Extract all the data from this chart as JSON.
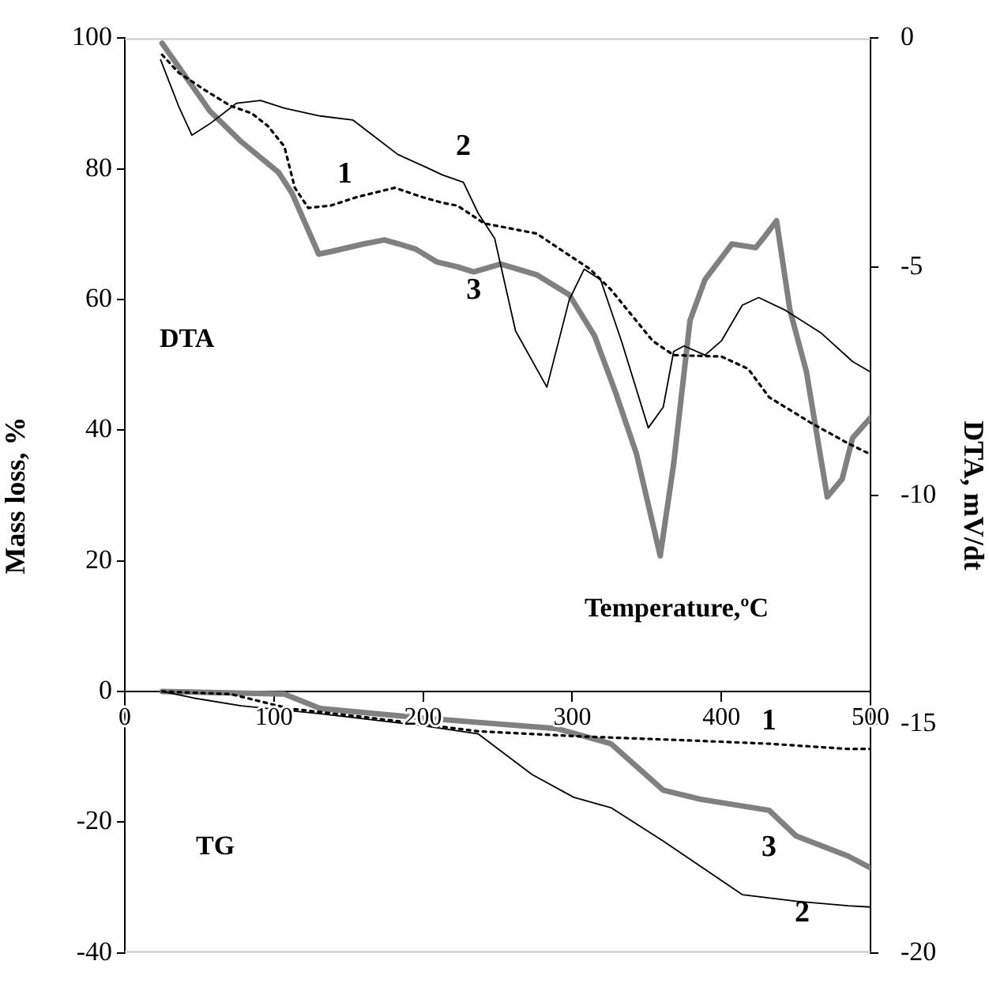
{
  "chart_data": {
    "type": "line",
    "xlabel": "Temperature,ºC",
    "ylabel": "Mass loss, %",
    "y2label": "DTA, mV/dt",
    "annotations": [
      "DTA",
      "TG"
    ],
    "xlim": [
      0,
      500
    ],
    "xticks": [
      0,
      100,
      200,
      300,
      400,
      500
    ],
    "ylim": [
      -40,
      100
    ],
    "yticks": [
      -40,
      -20,
      0,
      20,
      40,
      60,
      80,
      100
    ],
    "y2lim": [
      -20,
      0
    ],
    "y2ticks": [
      -20,
      -15,
      -10,
      -5,
      0
    ],
    "grid": false,
    "legend": false,
    "marker": "none",
    "series": [
      {
        "name": "1",
        "color": "#000000",
        "axis": "y2",
        "line_style": "dotted",
        "x": [
          25,
          36,
          54,
          71,
          85,
          96,
          107,
          114,
          123,
          138,
          156,
          181,
          199,
          213,
          223,
          241,
          276,
          312,
          326,
          354,
          368,
          400,
          418,
          432,
          460,
          485,
          500
        ],
        "values": [
          -0.36,
          -0.75,
          -1.14,
          -1.48,
          -1.64,
          -1.92,
          -2.37,
          -3.27,
          -3.71,
          -3.66,
          -3.47,
          -3.27,
          -3.47,
          -3.6,
          -3.66,
          -4.05,
          -4.27,
          -5.05,
          -5.5,
          -6.62,
          -6.93,
          -6.96,
          -7.23,
          -7.85,
          -8.41,
          -8.86,
          -9.1
        ]
      },
      {
        "name": "2",
        "color": "#000000",
        "axis": "y2",
        "line_style": "solid",
        "x": [
          24,
          36,
          45,
          57,
          75,
          91,
          107,
          131,
          153,
          167,
          183,
          202,
          213,
          227,
          237,
          248,
          262,
          283,
          298,
          308,
          319,
          333,
          351,
          361,
          368,
          375,
          389,
          400,
          414,
          425,
          443,
          467,
          488,
          500
        ],
        "values": [
          -0.47,
          -1.48,
          -2.12,
          -1.87,
          -1.42,
          -1.36,
          -1.53,
          -1.7,
          -1.79,
          -2.14,
          -2.54,
          -2.82,
          -2.99,
          -3.15,
          -3.83,
          -4.38,
          -6.4,
          -7.63,
          -5.72,
          -5.05,
          -5.28,
          -6.62,
          -8.52,
          -8.07,
          -6.85,
          -6.73,
          -6.93,
          -6.62,
          -5.84,
          -5.67,
          -5.95,
          -6.45,
          -7.07,
          -7.3
        ]
      },
      {
        "name": "3",
        "color": "#808080",
        "axis": "y2",
        "line_style": "solid",
        "x": [
          25,
          57,
          78,
          103,
          112,
          130,
          139,
          160,
          174,
          184,
          195,
          209,
          223,
          234,
          252,
          276,
          298,
          315,
          329,
          343,
          359,
          368,
          379,
          389,
          407,
          423,
          428,
          437,
          446,
          457,
          471,
          481,
          488,
          500
        ],
        "values": [
          -0.11,
          -1.59,
          -2.26,
          -2.93,
          -3.38,
          -4.72,
          -4.66,
          -4.5,
          -4.41,
          -4.5,
          -4.61,
          -4.89,
          -5.0,
          -5.11,
          -4.94,
          -5.17,
          -5.61,
          -6.51,
          -7.74,
          -9.08,
          -11.32,
          -9.31,
          -6.17,
          -5.28,
          -4.5,
          -4.58,
          -4.38,
          -3.99,
          -5.95,
          -7.29,
          -10.03,
          -9.64,
          -8.74,
          -8.3
        ]
      },
      {
        "name": "1",
        "color": "#000000",
        "line_style": "dotted",
        "x": [
          25,
          71,
          110,
          167,
          237,
          308,
          379,
          432,
          485,
          500
        ],
        "values": [
          0,
          -0.4,
          -2.6,
          -4.1,
          -6.1,
          -6.9,
          -7.5,
          -8.0,
          -8.8,
          -8.8
        ]
      },
      {
        "name": "2",
        "color": "#000000",
        "line_style": "solid",
        "x": [
          25,
          46,
          78,
          131,
          202,
          237,
          273,
          301,
          326,
          361,
          414,
          450,
          485,
          500
        ],
        "values": [
          0,
          -1.0,
          -2.2,
          -3.4,
          -5.3,
          -6.5,
          -12.7,
          -16.2,
          -17.8,
          -22.9,
          -31.1,
          -32.1,
          -32.8,
          -33
        ]
      },
      {
        "name": "3",
        "color": "#808080",
        "line_style": "solid",
        "x": [
          25,
          107,
          131,
          202,
          290,
          326,
          361,
          386,
          432,
          450,
          485,
          500
        ],
        "values": [
          0,
          -0.4,
          -2.6,
          -4.1,
          -5.7,
          -8.0,
          -15.1,
          -16.5,
          -18.2,
          -22.1,
          -25.2,
          -27
        ]
      }
    ]
  }
}
